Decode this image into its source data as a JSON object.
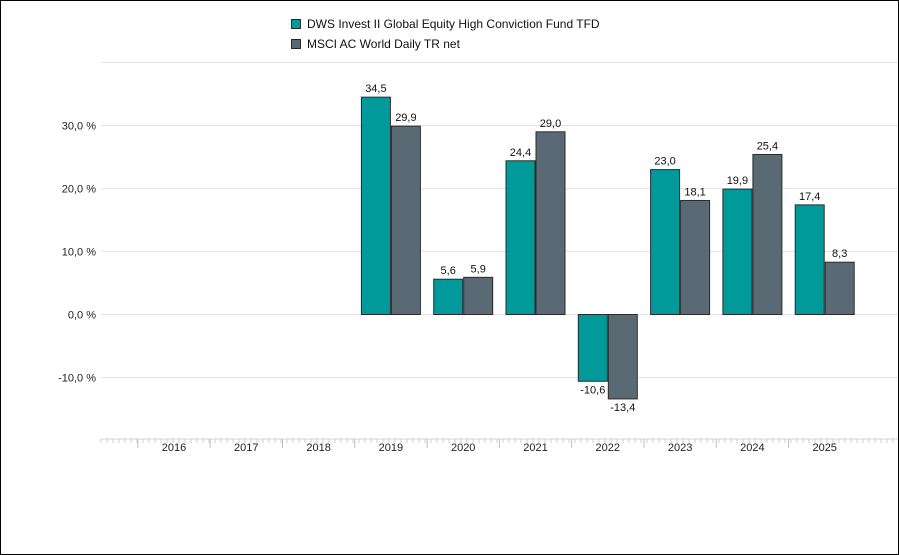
{
  "chart_data": {
    "type": "bar",
    "categories": [
      "2016",
      "2017",
      "2018",
      "2019",
      "2020",
      "2021",
      "2022",
      "2023",
      "2024",
      "2025"
    ],
    "series": [
      {
        "name": "DWS Invest II Global Equity High Conviction Fund TFD",
        "color": "#009a9a",
        "values": [
          null,
          null,
          null,
          34.5,
          5.6,
          24.4,
          -10.6,
          23.0,
          19.9,
          17.4
        ],
        "labels": [
          "",
          "",
          "",
          "34,5",
          "5,6",
          "24,4",
          "-10,6",
          "23,0",
          "19,9",
          "17,4"
        ]
      },
      {
        "name": "MSCI AC World Daily TR net",
        "color": "#5a6a75",
        "values": [
          null,
          null,
          null,
          29.9,
          5.9,
          29.0,
          -13.4,
          18.1,
          25.4,
          8.3
        ],
        "labels": [
          "",
          "",
          "",
          "29,9",
          "5,9",
          "29,0",
          "-13,4",
          "18,1",
          "25,4",
          "8,3"
        ]
      }
    ],
    "y_ticks": [
      {
        "value": 30,
        "label": "30,0 %"
      },
      {
        "value": 20,
        "label": "20,0 %"
      },
      {
        "value": 10,
        "label": "10,0 %"
      },
      {
        "value": 0,
        "label": "0,0 %"
      },
      {
        "value": -10,
        "label": "-10,0 %"
      }
    ],
    "ylim": [
      -20,
      40
    ],
    "grid": true,
    "legend_position": "top-center",
    "title": "",
    "xlabel": "",
    "ylabel": ""
  }
}
